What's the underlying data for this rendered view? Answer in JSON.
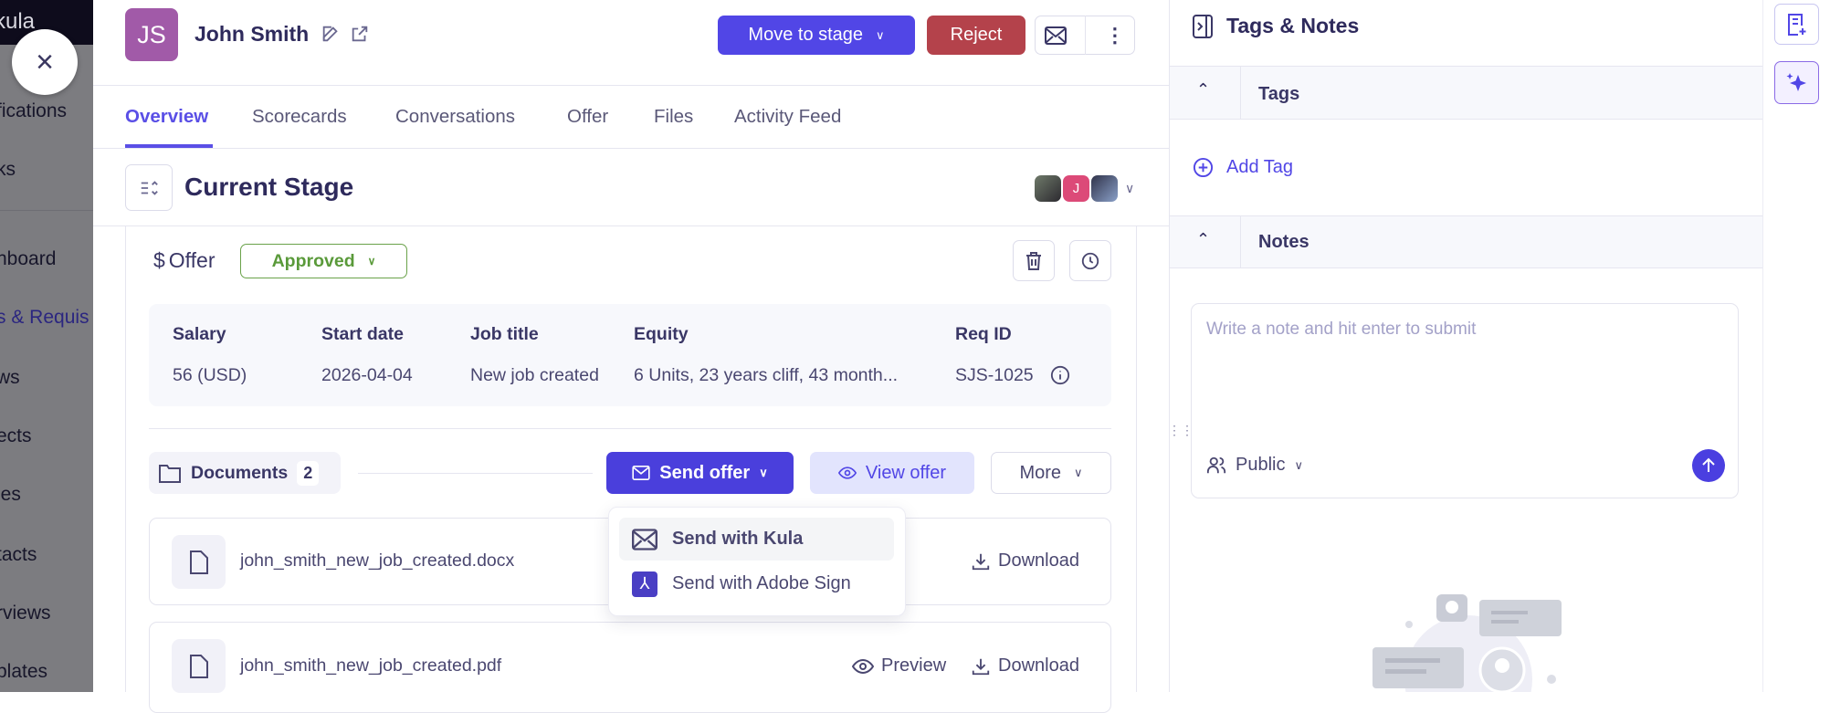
{
  "sidebar": {
    "brand": "kula",
    "items": [
      {
        "label": "fications"
      },
      {
        "label": "ks"
      },
      {
        "label": "hboard"
      },
      {
        "label": "s & Requis",
        "active": true
      },
      {
        "label": "ws"
      },
      {
        "label": "ects"
      },
      {
        "label": "les"
      },
      {
        "label": "tacts"
      },
      {
        "label": "rviews"
      },
      {
        "label": "plates"
      }
    ]
  },
  "candidate": {
    "initials": "JS",
    "name": "John Smith",
    "avatar_color": "#a15aa8"
  },
  "header": {
    "move_to_stage": "Move to stage",
    "reject": "Reject"
  },
  "tabs": [
    {
      "label": "Overview",
      "active": true
    },
    {
      "label": "Scorecards"
    },
    {
      "label": "Conversations"
    },
    {
      "label": "Offer"
    },
    {
      "label": "Files"
    },
    {
      "label": "Activity Feed"
    }
  ],
  "stage": {
    "title": "Current Stage",
    "avatars": [
      {
        "initial": ""
      },
      {
        "initial": "J"
      },
      {
        "initial": ""
      }
    ]
  },
  "offer": {
    "title": "Offer",
    "status": "Approved",
    "columns": [
      "Salary",
      "Start date",
      "Job title",
      "Equity",
      "Req ID"
    ],
    "values": [
      "56 (USD)",
      "2026-04-04",
      "New job created",
      "6 Units, 23 years cliff, 43 month...",
      "SJS-1025"
    ]
  },
  "documents": {
    "label": "Documents",
    "count": "2",
    "send_offer": "Send offer",
    "view_offer": "View offer",
    "more": "More",
    "files": [
      {
        "name": "john_smith_new_job_created.docx",
        "download": "Download"
      },
      {
        "name": "john_smith_new_job_created.pdf",
        "preview": "Preview",
        "download": "Download"
      }
    ]
  },
  "send_menu": {
    "items": [
      {
        "label": "Send with Kula",
        "icon": "mail-icon",
        "highlighted": true
      },
      {
        "label": "Send with Adobe Sign",
        "icon": "adobe-icon"
      }
    ]
  },
  "right_panel": {
    "title": "Tags & Notes",
    "tags_header": "Tags",
    "add_tag": "Add Tag",
    "notes_header": "Notes",
    "note_placeholder": "Write a note and hit enter to submit",
    "visibility": "Public"
  },
  "colors": {
    "primary": "#5146e6",
    "reject": "#b4424b",
    "approved": "#5a9a3a"
  }
}
